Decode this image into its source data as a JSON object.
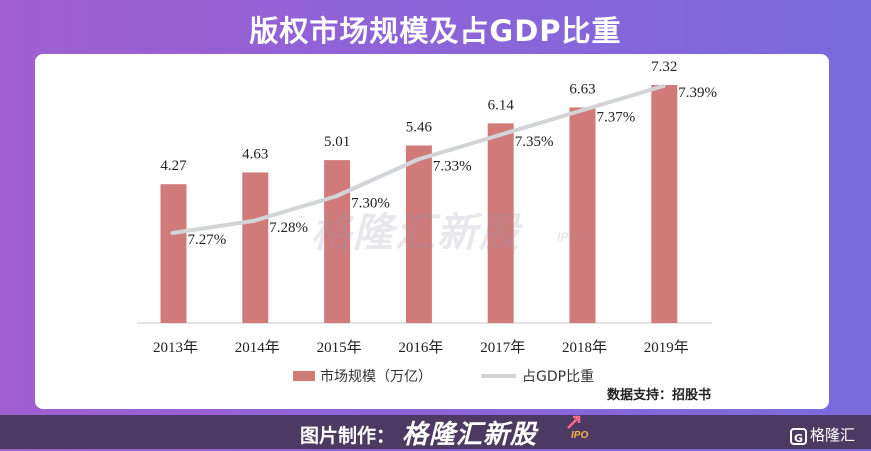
{
  "title": "版权市场规模及占GDP比重",
  "chart_data": {
    "type": "bar+line",
    "categories": [
      "2013年",
      "2014年",
      "2015年",
      "2016年",
      "2017年",
      "2018年",
      "2019年"
    ],
    "series": [
      {
        "name": "市场规模（万亿）",
        "type": "bar",
        "color": "#d17a7a",
        "values": [
          4.27,
          4.63,
          5.01,
          5.46,
          6.14,
          6.63,
          7.32
        ],
        "labels": [
          "4.27",
          "4.63",
          "5.01",
          "5.46",
          "6.14",
          "6.63",
          "7.32"
        ]
      },
      {
        "name": "占GDP比重",
        "type": "line",
        "color": "#d2d4d8",
        "values": [
          7.27,
          7.28,
          7.3,
          7.33,
          7.35,
          7.37,
          7.39
        ],
        "labels": [
          "7.27%",
          "7.28%",
          "7.30%",
          "7.33%",
          "7.35%",
          "7.37%",
          "7.39%"
        ]
      }
    ],
    "legend_position": "bottom-center"
  },
  "source": "数据支持：招股书",
  "footer": {
    "credit_label": "图片制作：",
    "credit_brand": "格隆汇新股",
    "credit_ipo": "IPO",
    "corner_logo_text": "格隆汇",
    "corner_logo_mark": "G"
  },
  "watermark": {
    "text": "格隆汇新股",
    "ipo": "IPO"
  },
  "colors": {
    "bar": "#d17a7a",
    "line": "#d2d4d8",
    "card": "#ffffff",
    "footer": "#4d3a62"
  }
}
